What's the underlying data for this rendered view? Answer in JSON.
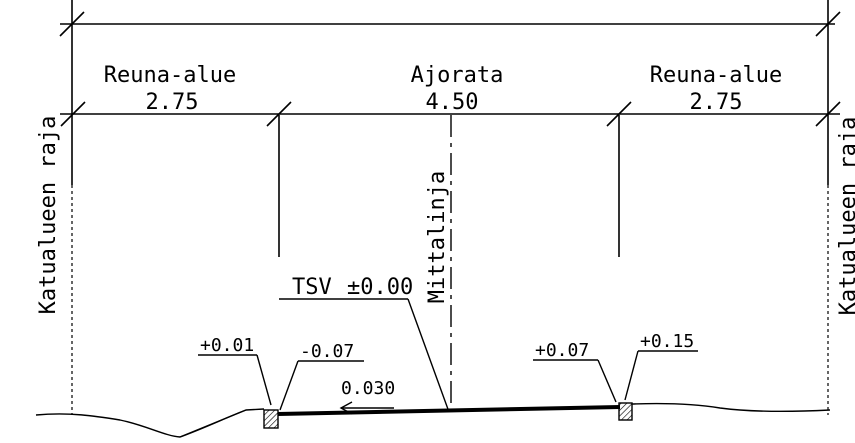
{
  "sections": [
    {
      "label": "Reuna-alue",
      "width": "2.75"
    },
    {
      "label": "Ajorata",
      "width": "4.50"
    },
    {
      "label": "Reuna-alue",
      "width": "2.75"
    }
  ],
  "boundary": {
    "left_label": "Katualueen raja",
    "right_label": "Katualueen raja"
  },
  "centreline_label": "Mittalinja",
  "tsv": {
    "label": "TSV",
    "value": "±0.00"
  },
  "slope": {
    "value": "0.030",
    "direction": "left"
  },
  "levels": {
    "left_outer": "+0.01",
    "left_inner": "-0.07",
    "right_inner": "+0.07",
    "right_outer": "+0.15"
  }
}
